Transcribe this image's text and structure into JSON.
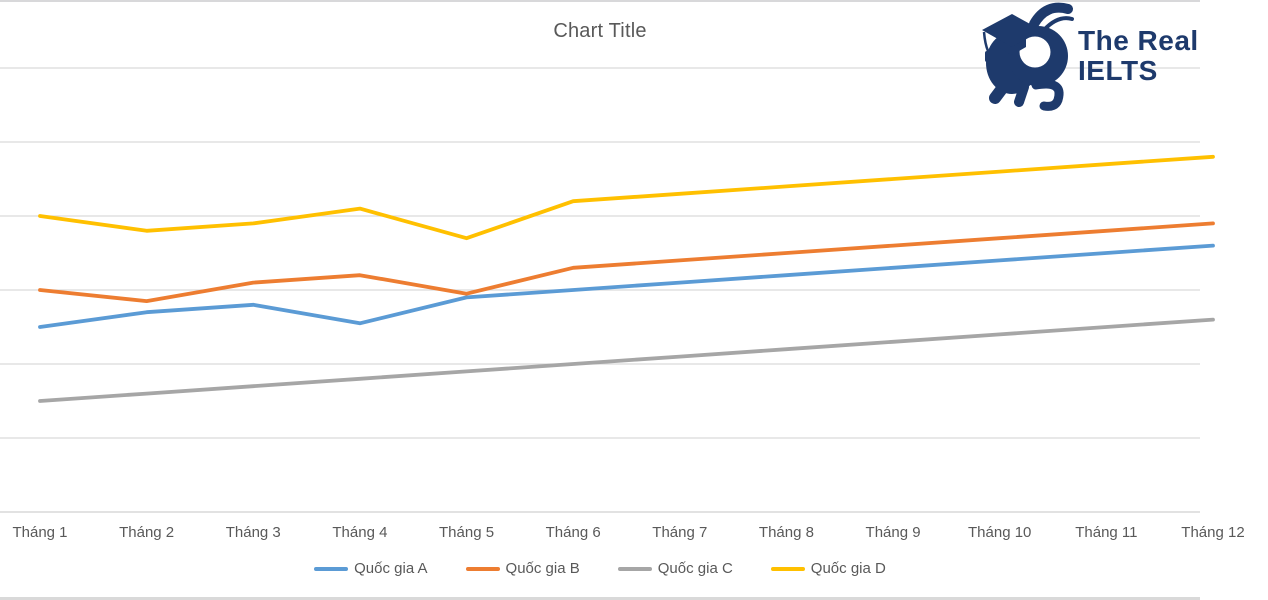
{
  "page": {
    "title": "Chart Title"
  },
  "logo": {
    "line1": "The Real",
    "line2": "IELTS",
    "color": "#1e3a6c"
  },
  "colors": {
    "background": "#FFFFFF",
    "grid": "#D9D9D9",
    "axis_line": "#D0D0D0",
    "axis_text": "#595959",
    "title_text": "#595959",
    "page_border": "#D8D8DA"
  },
  "chart_data": {
    "type": "line",
    "title": "Chart Title",
    "categories": [
      "Tháng 1",
      "Tháng 2",
      "Tháng 3",
      "Tháng 4",
      "Tháng 5",
      "Tháng 6",
      "Tháng 7",
      "Tháng 8",
      "Tháng 9",
      "Tháng 10",
      "Tháng 11",
      "Tháng 12"
    ],
    "series": [
      {
        "name": "Quốc gia A",
        "color": "#5B9BD5",
        "values": [
          2.5,
          2.7,
          2.8,
          2.55,
          2.9,
          3.0,
          3.1,
          3.2,
          3.3,
          3.4,
          3.5,
          3.6
        ]
      },
      {
        "name": "Quốc gia B",
        "color": "#ED7D31",
        "values": [
          3.0,
          2.85,
          3.1,
          3.2,
          2.95,
          3.3,
          3.4,
          3.5,
          3.6,
          3.7,
          3.8,
          3.9
        ]
      },
      {
        "name": "Quốc gia C",
        "color": "#A6A6A6",
        "values": [
          1.5,
          1.6,
          1.7,
          1.8,
          1.9,
          2.0,
          2.1,
          2.2,
          2.3,
          2.4,
          2.5,
          2.6
        ]
      },
      {
        "name": "Quốc gia D",
        "color": "#FFC000",
        "values": [
          4.0,
          3.8,
          3.9,
          4.1,
          3.7,
          4.2,
          4.3,
          4.4,
          4.5,
          4.6,
          4.7,
          4.8
        ]
      }
    ],
    "xlabel": "",
    "ylabel": "",
    "ylim": [
      0,
      6
    ],
    "y_axis_labels_visible": false,
    "gridlines": "horizontal",
    "legend_position": "bottom"
  }
}
